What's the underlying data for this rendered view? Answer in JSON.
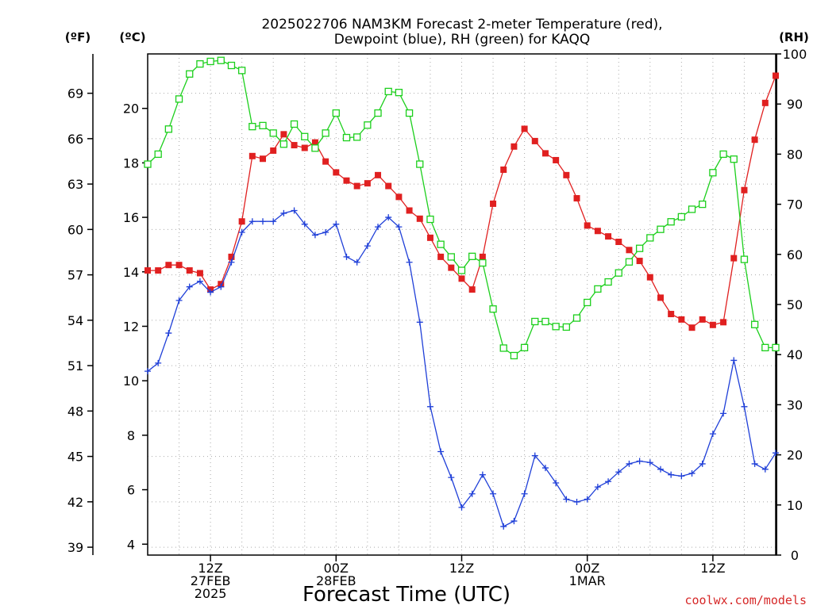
{
  "title_line1": "2025022706 NAM3KM Forecast 2-meter Temperature (red),",
  "title_line2": "Dewpoint (blue), RH (green) for KAQQ",
  "units": {
    "fahrenheit": "(ºF)",
    "celsius": "(ºC)",
    "rh": "(RH)"
  },
  "credit": "coolwx.com/models",
  "colors": {
    "temperature": "#e02020",
    "dewpoint": "#1f3fd8",
    "rh": "#1ccf1c",
    "grid": "#aaaaaa",
    "credit": "#d62828"
  },
  "chart_data": {
    "type": "line",
    "title": "2025022706 NAM3KM Forecast 2-meter Temperature (red), Dewpoint (blue), RH (green) for KAQQ",
    "xlabel": "Forecast Time (UTC)",
    "x_unit": "forecast hour (from 2025022706)",
    "x": [
      0,
      1,
      2,
      3,
      4,
      5,
      6,
      7,
      8,
      9,
      10,
      11,
      12,
      13,
      14,
      15,
      16,
      17,
      18,
      19,
      20,
      21,
      22,
      23,
      24,
      25,
      26,
      27,
      28,
      29,
      30,
      31,
      32,
      33,
      34,
      35,
      36,
      37,
      38,
      39,
      40,
      41,
      42,
      43,
      44,
      45,
      46,
      47,
      48,
      49,
      50,
      51,
      52,
      53,
      54,
      55,
      56,
      57,
      58,
      59,
      60
    ],
    "xlim": [
      0,
      60
    ],
    "x_ticks": [
      {
        "x": 6,
        "lines": [
          "12Z",
          "27FEB",
          "2025"
        ]
      },
      {
        "x": 18,
        "lines": [
          "00Z",
          "28FEB"
        ]
      },
      {
        "x": 30,
        "lines": [
          "12Z"
        ]
      },
      {
        "x": 42,
        "lines": [
          "00Z",
          "1MAR"
        ]
      },
      {
        "x": 54,
        "lines": [
          "12Z"
        ]
      }
    ],
    "y_left_celsius": {
      "ylim": [
        3.6,
        22
      ],
      "ticks": [
        4,
        6,
        8,
        10,
        12,
        14,
        16,
        18,
        20
      ]
    },
    "y_left_fahrenheit": {
      "ticks": [
        39,
        42,
        45,
        48,
        51,
        54,
        57,
        60,
        63,
        66,
        69
      ]
    },
    "y_right_rh": {
      "ylim": [
        0,
        100
      ],
      "ticks": [
        0,
        10,
        20,
        30,
        40,
        50,
        60,
        70,
        80,
        90,
        100
      ]
    },
    "grid": true,
    "series": [
      {
        "name": "Temperature (red)",
        "axis": "celsius",
        "marker": "filled-square",
        "values": [
          14.05,
          14.05,
          14.25,
          14.25,
          14.05,
          13.95,
          13.35,
          13.55,
          14.55,
          15.85,
          18.25,
          18.15,
          18.45,
          19.05,
          18.65,
          18.55,
          18.75,
          18.05,
          17.65,
          17.35,
          17.15,
          17.25,
          17.55,
          17.15,
          16.75,
          16.25,
          15.95,
          15.25,
          14.55,
          14.15,
          13.75,
          13.35,
          14.55,
          16.5,
          17.75,
          18.6,
          19.25,
          18.8,
          18.35,
          18.1,
          17.55,
          16.7,
          15.7,
          15.5,
          15.3,
          15.1,
          14.8,
          14.4,
          13.8,
          13.05,
          12.45,
          12.25,
          11.95,
          12.25,
          12.05,
          12.15,
          14.5,
          17.0,
          18.85,
          20.2,
          21.2
        ]
      },
      {
        "name": "Dewpoint (blue)",
        "axis": "celsius",
        "marker": "plus",
        "values": [
          10.35,
          10.65,
          11.75,
          12.95,
          13.45,
          13.65,
          13.25,
          13.45,
          14.35,
          15.45,
          15.85,
          15.85,
          15.85,
          16.15,
          16.25,
          15.75,
          15.35,
          15.45,
          15.75,
          14.55,
          14.35,
          14.95,
          15.65,
          16.0,
          15.65,
          14.35,
          12.15,
          9.05,
          7.4,
          6.45,
          5.35,
          5.85,
          6.55,
          5.85,
          4.65,
          4.85,
          5.85,
          7.25,
          6.8,
          6.25,
          5.65,
          5.55,
          5.65,
          6.1,
          6.3,
          6.65,
          6.95,
          7.05,
          7.0,
          6.75,
          6.55,
          6.5,
          6.6,
          6.95,
          8.05,
          8.8,
          10.75,
          9.05,
          6.95,
          6.75,
          7.35
        ]
      },
      {
        "name": "RH (green)",
        "axis": "rh",
        "marker": "open-square",
        "values": [
          78,
          80,
          85,
          91,
          96,
          98,
          98.5,
          98.7,
          97.7,
          96.7,
          85.5,
          85.7,
          84.2,
          82,
          86,
          83.5,
          81.2,
          84.2,
          88.2,
          83.3,
          83.4,
          85.8,
          88.2,
          92.5,
          92.3,
          88.2,
          78,
          67,
          62,
          59.5,
          56.8,
          59.6,
          58.3,
          49.1,
          41.3,
          39.8,
          41.4,
          46.6,
          46.6,
          45.6,
          45.5,
          47.3,
          50.4,
          53.1,
          54.5,
          56.3,
          58.5,
          61.2,
          63.3,
          65,
          66.5,
          67.5,
          69,
          70,
          76.3,
          80,
          79,
          59,
          46,
          41.4,
          41.4
        ]
      }
    ]
  }
}
